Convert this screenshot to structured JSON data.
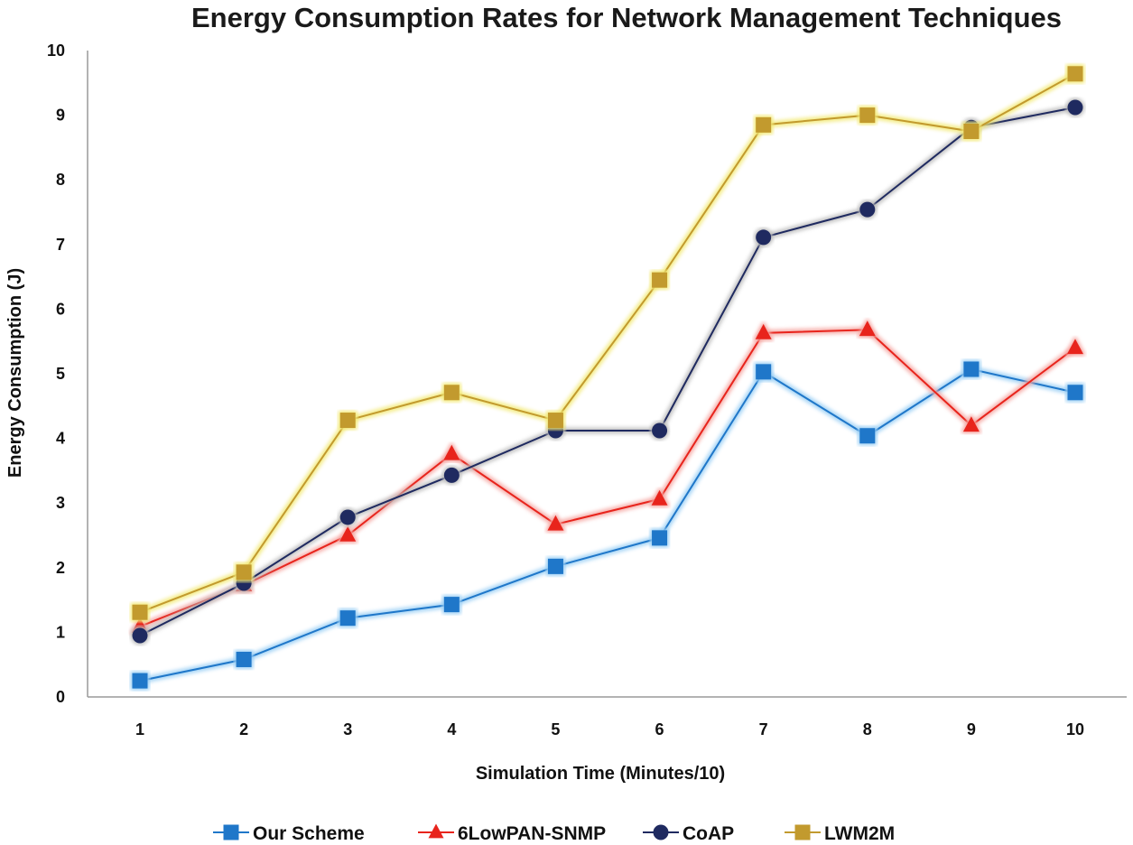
{
  "chart_data": {
    "type": "line",
    "title": "Energy Consumption Rates for Network Management Techniques",
    "xlabel": "Simulation Time (Minutes/10)",
    "ylabel": "Energy Consumption (J)",
    "x": [
      1,
      2,
      3,
      4,
      5,
      6,
      7,
      8,
      9,
      10
    ],
    "ylim": [
      0,
      10
    ],
    "yticks": [
      0,
      1,
      2,
      3,
      4,
      5,
      6,
      7,
      8,
      9,
      10
    ],
    "grid": false,
    "legend_position": "bottom",
    "series": [
      {
        "name": "Our Scheme",
        "color": "#1f77c9",
        "glow": "#9dd0f5",
        "marker": "square",
        "values": [
          0.25,
          0.58,
          1.22,
          1.43,
          2.02,
          2.46,
          5.03,
          4.04,
          5.07,
          4.71
        ]
      },
      {
        "name": "6LowPAN-SNMP",
        "color": "#e8241c",
        "glow": "#f6a9a4",
        "marker": "triangle",
        "values": [
          1.09,
          1.73,
          2.5,
          3.76,
          2.67,
          3.06,
          5.63,
          5.68,
          4.2,
          5.4
        ]
      },
      {
        "name": "CoAP",
        "color": "#1f2a60",
        "glow": "#bdbdbd",
        "marker": "circle",
        "values": [
          0.95,
          1.76,
          2.78,
          3.43,
          4.12,
          4.12,
          7.11,
          7.54,
          8.81,
          9.12
        ]
      },
      {
        "name": "LWM2M",
        "color": "#c29a2e",
        "glow": "#f3ea7a",
        "marker": "square",
        "values": [
          1.31,
          1.93,
          4.28,
          4.71,
          4.28,
          6.45,
          8.85,
          9.0,
          8.75,
          9.64
        ]
      }
    ]
  }
}
